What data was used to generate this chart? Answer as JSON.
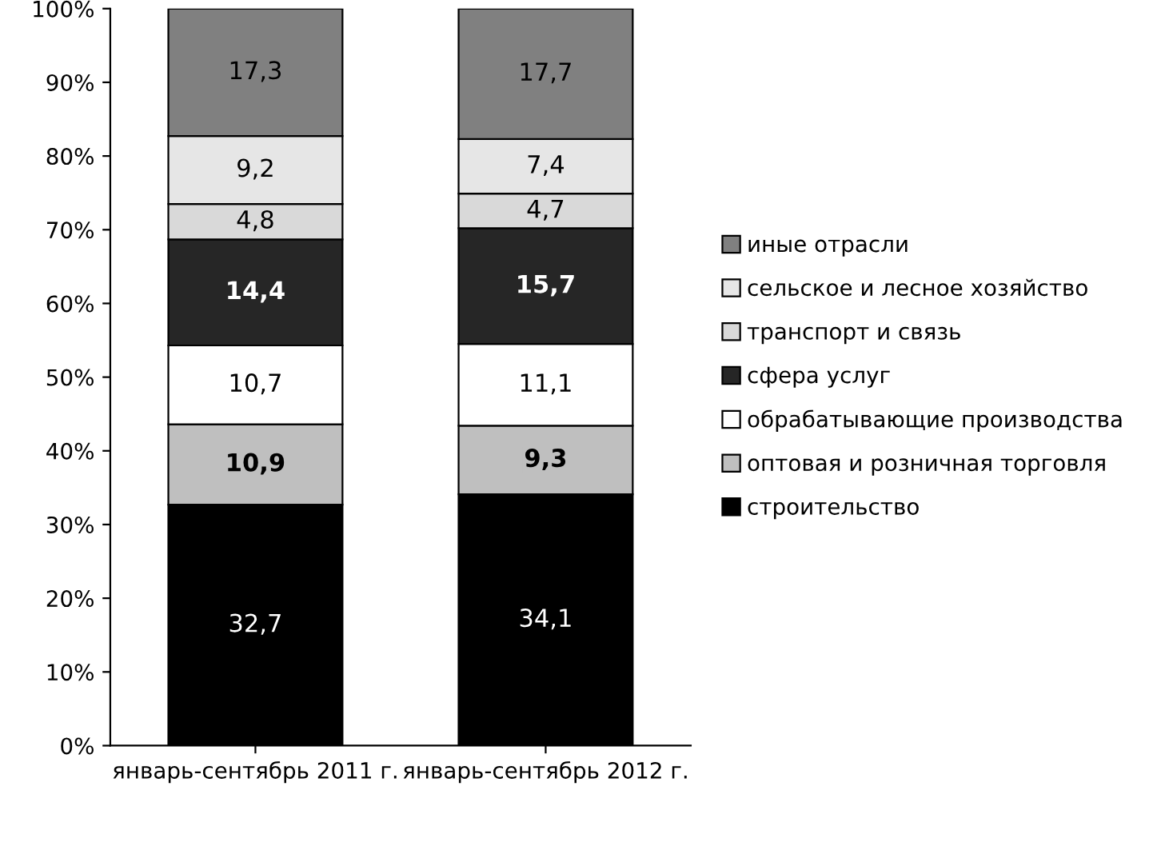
{
  "chart_data": {
    "type": "bar",
    "stacked": true,
    "categories": [
      "январь-сентябрь 2011 г.",
      "январь-сентябрь 2012 г."
    ],
    "ylim": [
      0,
      100
    ],
    "yticks": [
      {
        "value": 0,
        "label": "0%"
      },
      {
        "value": 10,
        "label": "10%"
      },
      {
        "value": 20,
        "label": "20%"
      },
      {
        "value": 30,
        "label": "30%"
      },
      {
        "value": 40,
        "label": "40%"
      },
      {
        "value": 50,
        "label": "50%"
      },
      {
        "value": 60,
        "label": "60%"
      },
      {
        "value": 70,
        "label": "70%"
      },
      {
        "value": 80,
        "label": "80%"
      },
      {
        "value": 90,
        "label": "90%"
      },
      {
        "value": 100,
        "label": "100%"
      }
    ],
    "grid": false,
    "legend": "right",
    "series": [
      {
        "name": "строительство",
        "color": "#000000",
        "values": [
          32.7,
          34.1
        ],
        "value_labels": [
          "32,7",
          "34,1"
        ]
      },
      {
        "name": "оптовая и розничная торговля",
        "color": "#bfbfbf",
        "values": [
          10.9,
          9.3
        ],
        "value_labels": [
          "10,9",
          "9,3"
        ]
      },
      {
        "name": "обрабатывающие производства",
        "color": "#ffffff",
        "values": [
          10.7,
          11.1
        ],
        "value_labels": [
          "10,7",
          "11,1"
        ]
      },
      {
        "name": "сфера услуг",
        "color": "#262626",
        "values": [
          14.4,
          15.7
        ],
        "value_labels": [
          "14,4",
          "15,7"
        ]
      },
      {
        "name": "транспорт и связь",
        "color": "#d9d9d9",
        "values": [
          4.8,
          4.7
        ],
        "value_labels": [
          "4,8",
          "4,7"
        ]
      },
      {
        "name": "сельское и лесное хозяйство",
        "color": "#e6e6e6",
        "values": [
          9.2,
          7.4
        ],
        "value_labels": [
          "9,2",
          "7,4"
        ]
      },
      {
        "name": "иные отрасли",
        "color": "#808080",
        "values": [
          17.3,
          17.7
        ],
        "value_labels": [
          "17,3",
          "17,7"
        ]
      }
    ]
  }
}
